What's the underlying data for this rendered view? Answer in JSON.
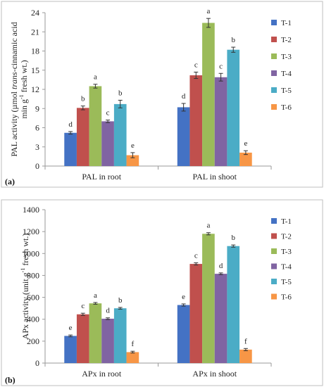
{
  "panels": [
    {
      "panel_label": "(a)",
      "chart_data": {
        "type": "bar",
        "ylabel_line1_pre": "PAL activity (µmol ",
        "ylabel_line1_italic": "trans",
        "ylabel_line1_post": "-cinnamic acid",
        "ylabel_line2_pre": "min g",
        "ylabel_line2_sup": "-1",
        "ylabel_line2_post": " fresh wt.)",
        "ylim": [
          0,
          24
        ],
        "yticks": [
          0,
          3,
          6,
          9,
          12,
          15,
          18,
          21,
          24
        ],
        "categories": [
          "PAL in root",
          "PAL in shoot"
        ],
        "series": [
          {
            "name": "T-1",
            "color": "#4472C4",
            "values": [
              5.2,
              9.2
            ],
            "errors": [
              0.2,
              0.6
            ],
            "letters": [
              "d",
              "d"
            ]
          },
          {
            "name": "T-2",
            "color": "#C0504D",
            "values": [
              9.1,
              14.2
            ],
            "errors": [
              0.3,
              0.5
            ],
            "letters": [
              "b",
              "c"
            ]
          },
          {
            "name": "T-3",
            "color": "#9BBB59",
            "values": [
              12.5,
              22.4
            ],
            "errors": [
              0.3,
              0.7
            ],
            "letters": [
              "a",
              "a"
            ]
          },
          {
            "name": "T-4",
            "color": "#8064A2",
            "values": [
              7.0,
              13.9
            ],
            "errors": [
              0.2,
              0.6
            ],
            "letters": [
              "c",
              "c"
            ]
          },
          {
            "name": "T-5",
            "color": "#4BACC6",
            "values": [
              9.7,
              18.2
            ],
            "errors": [
              0.6,
              0.4
            ],
            "letters": [
              "b",
              "b"
            ]
          },
          {
            "name": "T-6",
            "color": "#F79646",
            "values": [
              1.7,
              2.1
            ],
            "errors": [
              0.4,
              0.3
            ],
            "letters": [
              "e",
              "e"
            ]
          }
        ]
      }
    },
    {
      "panel_label": "(b)",
      "chart_data": {
        "type": "bar",
        "ylabel_line1_pre": "APx activity (unit g",
        "ylabel_line1_italic": "",
        "ylabel_line1_sup": "-1",
        "ylabel_line1_post": " fresh wt.)",
        "ylim": [
          0,
          1400
        ],
        "yticks": [
          0,
          200,
          400,
          600,
          800,
          1000,
          1200,
          1400
        ],
        "categories": [
          "APx in root",
          "APx in shoot"
        ],
        "series": [
          {
            "name": "T-1",
            "color": "#4472C4",
            "values": [
              248,
              530
            ],
            "errors": [
              8,
              10
            ],
            "letters": [
              "e",
              "e"
            ]
          },
          {
            "name": "T-2",
            "color": "#C0504D",
            "values": [
              445,
              905
            ],
            "errors": [
              10,
              10
            ],
            "letters": [
              "c",
              "c"
            ]
          },
          {
            "name": "T-3",
            "color": "#9BBB59",
            "values": [
              545,
              1180
            ],
            "errors": [
              8,
              10
            ],
            "letters": [
              "a",
              "a"
            ]
          },
          {
            "name": "T-4",
            "color": "#8064A2",
            "values": [
              405,
              815
            ],
            "errors": [
              8,
              8
            ],
            "letters": [
              "d",
              "d"
            ]
          },
          {
            "name": "T-5",
            "color": "#4BACC6",
            "values": [
              500,
              1068
            ],
            "errors": [
              8,
              10
            ],
            "letters": [
              "b",
              "b"
            ]
          },
          {
            "name": "T-6",
            "color": "#F79646",
            "values": [
              100,
              123
            ],
            "errors": [
              8,
              10
            ],
            "letters": [
              "f",
              "f"
            ]
          }
        ]
      }
    }
  ]
}
